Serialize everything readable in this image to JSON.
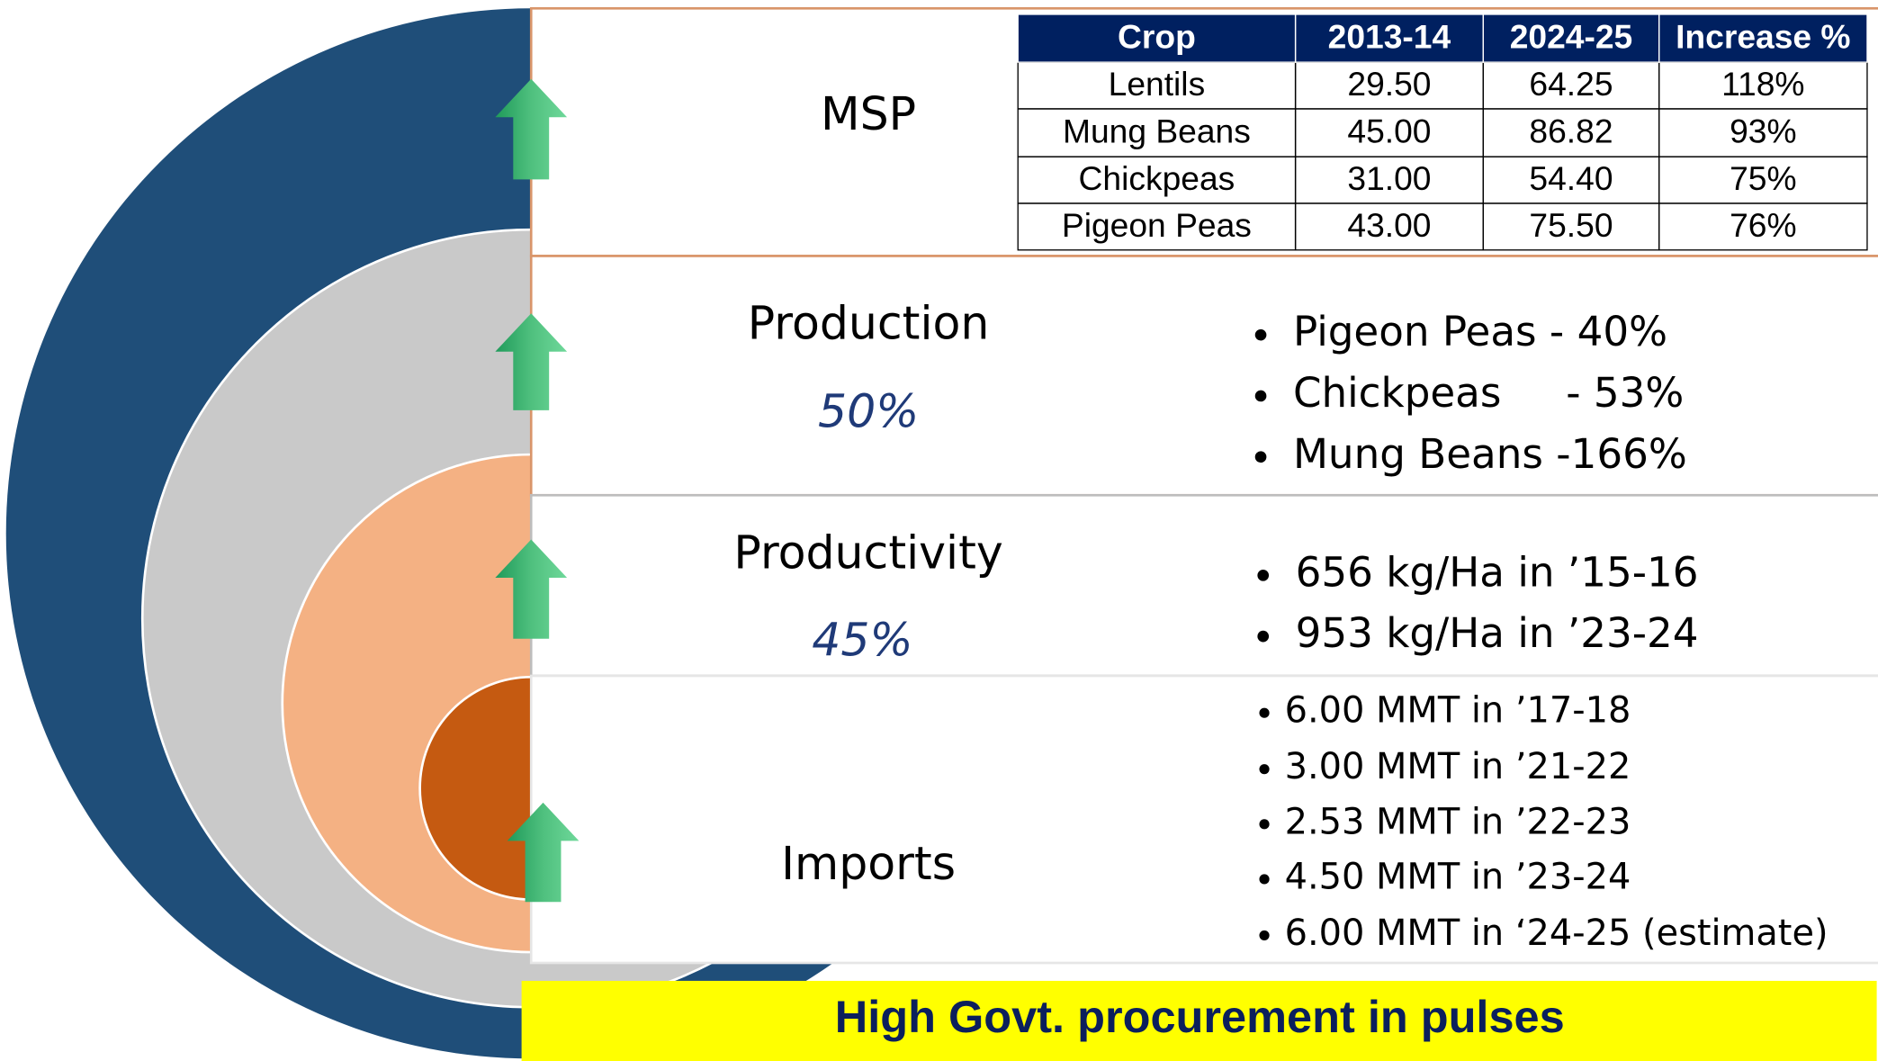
{
  "msp": {
    "title": "MSP",
    "table": {
      "header": [
        "Crop",
        "2013-14",
        "2024-25",
        "Increase %"
      ],
      "rows": [
        [
          "Lentils",
          "29.50",
          "64.25",
          "118%"
        ],
        [
          "Mung Beans",
          "45.00",
          "86.82",
          "93%"
        ],
        [
          "Chickpeas",
          "31.00",
          "54.40",
          "75%"
        ],
        [
          "Pigeon Peas",
          "43.00",
          "75.50",
          "76%"
        ]
      ]
    }
  },
  "production": {
    "title": "Production",
    "value": "50%",
    "bullets": [
      "Pigeon Peas - 40%",
      "Chickpeas     - 53%",
      "Mung Beans -166%"
    ]
  },
  "productivity": {
    "title": "Productivity",
    "value": "45%",
    "bullets": [
      "656 kg/Ha in ’15-16",
      "953 kg/Ha in ’23-24"
    ]
  },
  "imports": {
    "title": "Imports",
    "bullets": [
      "6.00 MMT in ’17-18",
      "3.00 MMT in ’21-22",
      "2.53 MMT in ’22-23",
      "4.50 MMT in ’23-24",
      "6.00 MMT in ‘24-25 (estimate)"
    ]
  },
  "footer": "High Govt. procurement in pulses"
}
